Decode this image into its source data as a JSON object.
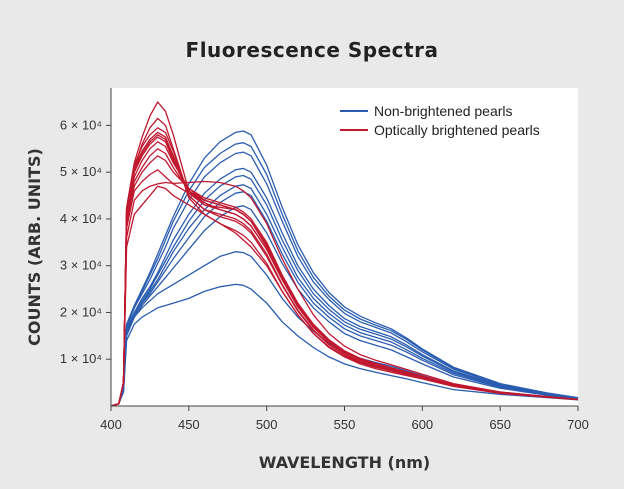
{
  "chart_data": {
    "type": "line",
    "title": "Fluorescence Spectra",
    "xlabel": "WAVELENGTH (nm)",
    "ylabel": "COUNTS (ARB. UNITS)",
    "xlim": [
      400,
      700
    ],
    "ylim": [
      0,
      68000
    ],
    "x_ticks": [
      400,
      450,
      500,
      550,
      600,
      650,
      700
    ],
    "y_ticks": [
      {
        "value": 10000,
        "label": "1 × 10⁴"
      },
      {
        "value": 20000,
        "label": "2 × 10⁴"
      },
      {
        "value": 30000,
        "label": "3 × 10⁴"
      },
      {
        "value": 40000,
        "label": "4 × 10⁴"
      },
      {
        "value": 50000,
        "label": "5 × 10⁴"
      },
      {
        "value": 60000,
        "label": "6 × 10⁴"
      }
    ],
    "grid": false,
    "legend_position": "top-right",
    "x": [
      400,
      405,
      408,
      410,
      415,
      420,
      425,
      430,
      435,
      440,
      450,
      460,
      470,
      480,
      485,
      490,
      500,
      510,
      520,
      530,
      540,
      550,
      560,
      570,
      580,
      590,
      600,
      620,
      650,
      680,
      700
    ],
    "series": [
      {
        "name": "Non-brightened pearls",
        "color": "#2a5db0",
        "curves": [
          [
            0,
            500,
            3000,
            14000,
            17500,
            19000,
            20000,
            21000,
            21500,
            22000,
            23000,
            24500,
            25500,
            26000,
            25800,
            25000,
            22000,
            18000,
            15000,
            12500,
            10500,
            9000,
            8000,
            7200,
            6500,
            5800,
            5000,
            3500,
            2500,
            1800,
            1300
          ],
          [
            0,
            500,
            3500,
            15000,
            19000,
            21000,
            22500,
            24000,
            25000,
            26000,
            28000,
            30000,
            32000,
            33000,
            32800,
            32000,
            28000,
            23000,
            19000,
            16000,
            13500,
            11500,
            10200,
            9300,
            8500,
            7500,
            6500,
            4500,
            3000,
            2000,
            1400
          ],
          [
            0,
            500,
            3500,
            15500,
            19000,
            21500,
            23500,
            25500,
            27500,
            29500,
            33500,
            37500,
            40500,
            42500,
            42800,
            42000,
            37000,
            30500,
            25000,
            21000,
            18000,
            15500,
            14000,
            13000,
            12000,
            10500,
            9000,
            6200,
            3800,
            2300,
            1500
          ],
          [
            0,
            500,
            3500,
            16000,
            19500,
            22000,
            24000,
            26500,
            29000,
            31500,
            36000,
            40500,
            43500,
            45500,
            45800,
            45000,
            39500,
            32500,
            26500,
            22000,
            19000,
            16500,
            15000,
            14000,
            13000,
            11500,
            9800,
            6700,
            4000,
            2400,
            1600
          ],
          [
            0,
            500,
            3500,
            16000,
            19500,
            22000,
            24500,
            27000,
            30000,
            33000,
            38000,
            42000,
            45000,
            47000,
            47300,
            46500,
            41000,
            34000,
            27500,
            23000,
            19800,
            17300,
            15700,
            14700,
            13700,
            12000,
            10200,
            7000,
            4200,
            2500,
            1600
          ],
          [
            0,
            500,
            3500,
            16500,
            20000,
            22500,
            25000,
            28000,
            31000,
            34000,
            39500,
            44000,
            47000,
            49000,
            49300,
            48500,
            43000,
            35500,
            29000,
            24000,
            20700,
            18000,
            16400,
            15400,
            14300,
            12600,
            10700,
            7300,
            4300,
            2500,
            1600
          ],
          [
            0,
            500,
            3500,
            16500,
            20000,
            23000,
            25500,
            28500,
            32000,
            35500,
            41000,
            45500,
            48500,
            50500,
            50800,
            50000,
            44500,
            37000,
            30000,
            25000,
            21500,
            18700,
            17000,
            15900,
            14800,
            13000,
            11000,
            7500,
            4400,
            2600,
            1700
          ],
          [
            0,
            500,
            3500,
            17000,
            21000,
            24000,
            27000,
            30500,
            34000,
            38000,
            44000,
            49000,
            52000,
            54000,
            54300,
            53500,
            47500,
            39500,
            32000,
            26500,
            22800,
            19800,
            18000,
            16800,
            15600,
            13700,
            11600,
            7900,
            4600,
            2700,
            1700
          ],
          [
            0,
            500,
            3500,
            17000,
            21000,
            24500,
            28000,
            31500,
            35500,
            39500,
            46000,
            51000,
            54000,
            56000,
            56300,
            55500,
            49500,
            41000,
            33200,
            27500,
            23500,
            20500,
            18600,
            17300,
            16100,
            14200,
            12000,
            8100,
            4700,
            2700,
            1700
          ],
          [
            0,
            500,
            3500,
            17500,
            21500,
            25000,
            28500,
            32500,
            36500,
            40500,
            47500,
            53000,
            56500,
            58500,
            58800,
            58000,
            51500,
            42500,
            34500,
            28500,
            24300,
            21200,
            19200,
            17800,
            16500,
            14500,
            12200,
            8300,
            4800,
            2800,
            1800
          ]
        ]
      },
      {
        "name": "Optically brightened pearls",
        "color": "#c0182f",
        "curves": [
          [
            0,
            500,
            5000,
            34000,
            41000,
            43000,
            45000,
            47000,
            46500,
            45000,
            43000,
            41000,
            39000,
            37000,
            35500,
            34000,
            30000,
            24500,
            19500,
            15500,
            12500,
            10500,
            9000,
            8000,
            7200,
            6500,
            5800,
            4200,
            2800,
            1900,
            1400
          ],
          [
            0,
            500,
            5000,
            36000,
            44000,
            46000,
            47000,
            47500,
            47800,
            47600,
            47800,
            48000,
            47800,
            47000,
            46000,
            44500,
            39000,
            31500,
            25000,
            19500,
            15500,
            12800,
            11000,
            9800,
            8800,
            7800,
            6800,
            4800,
            3000,
            2000,
            1400
          ],
          [
            0,
            500,
            5000,
            38000,
            46000,
            48000,
            49500,
            50500,
            49000,
            47500,
            45500,
            44000,
            43000,
            42000,
            41000,
            39500,
            34500,
            27500,
            21500,
            17000,
            13800,
            11500,
            10000,
            9000,
            8100,
            7200,
            6300,
            4500,
            2900,
            2000,
            1400
          ],
          [
            0,
            500,
            5000,
            39000,
            47000,
            50000,
            52000,
            53500,
            52500,
            50000,
            46500,
            44500,
            43500,
            42500,
            41500,
            40000,
            35000,
            28000,
            22000,
            17500,
            14200,
            11800,
            10200,
            9100,
            8200,
            7300,
            6400,
            4600,
            2900,
            2000,
            1400
          ],
          [
            0,
            500,
            5000,
            40000,
            48000,
            51000,
            53500,
            55000,
            54000,
            51000,
            46000,
            43500,
            42000,
            41000,
            40000,
            38500,
            33500,
            27000,
            21200,
            16800,
            13700,
            11400,
            9900,
            8900,
            8000,
            7100,
            6200,
            4400,
            2800,
            1900,
            1400
          ],
          [
            0,
            500,
            5000,
            40500,
            49000,
            52500,
            55000,
            56500,
            55500,
            52000,
            46500,
            44000,
            43000,
            42000,
            41000,
            39500,
            34500,
            27800,
            21800,
            17200,
            14000,
            11700,
            10100,
            9000,
            8100,
            7200,
            6300,
            4500,
            2900,
            2000,
            1400
          ],
          [
            0,
            500,
            5000,
            41000,
            50000,
            53500,
            56000,
            57500,
            56500,
            52500,
            45500,
            43000,
            42000,
            41000,
            40000,
            38500,
            33500,
            27000,
            21300,
            16900,
            13800,
            11500,
            9900,
            8900,
            8000,
            7100,
            6200,
            4400,
            2800,
            1900,
            1400
          ],
          [
            0,
            500,
            5000,
            41500,
            50500,
            54000,
            56500,
            58000,
            57000,
            53000,
            46000,
            44000,
            43000,
            42000,
            41000,
            39500,
            34200,
            27500,
            21600,
            17100,
            13900,
            11600,
            10000,
            9000,
            8100,
            7200,
            6300,
            4500,
            2900,
            2000,
            1400
          ],
          [
            0,
            500,
            5000,
            42000,
            51000,
            54500,
            57000,
            58500,
            57500,
            53500,
            45000,
            42000,
            40500,
            39500,
            38500,
            37000,
            32000,
            25800,
            20300,
            16100,
            13100,
            11000,
            9500,
            8500,
            7700,
            6900,
            6000,
            4300,
            2800,
            1900,
            1400
          ],
          [
            0,
            500,
            5000,
            42000,
            51500,
            55500,
            58000,
            59500,
            58500,
            54500,
            44500,
            41000,
            39000,
            37500,
            36500,
            35000,
            30500,
            24500,
            19500,
            15500,
            12700,
            10700,
            9300,
            8300,
            7500,
            6700,
            5900,
            4200,
            2700,
            1900,
            1400
          ],
          [
            0,
            500,
            5000,
            42000,
            51000,
            56000,
            59500,
            61500,
            60000,
            55000,
            45000,
            42000,
            41000,
            40000,
            39000,
            37500,
            32500,
            26000,
            20500,
            16300,
            13300,
            11100,
            9600,
            8600,
            7800,
            7000,
            6100,
            4400,
            2800,
            1900,
            1400
          ],
          [
            0,
            500,
            5000,
            42500,
            52000,
            57500,
            62000,
            65000,
            63000,
            58000,
            46000,
            43000,
            42500,
            42000,
            41000,
            39500,
            34000,
            27200,
            21400,
            17000,
            13800,
            11500,
            9900,
            8900,
            8000,
            7100,
            6200,
            4400,
            2800,
            1900,
            1400
          ]
        ]
      }
    ]
  }
}
